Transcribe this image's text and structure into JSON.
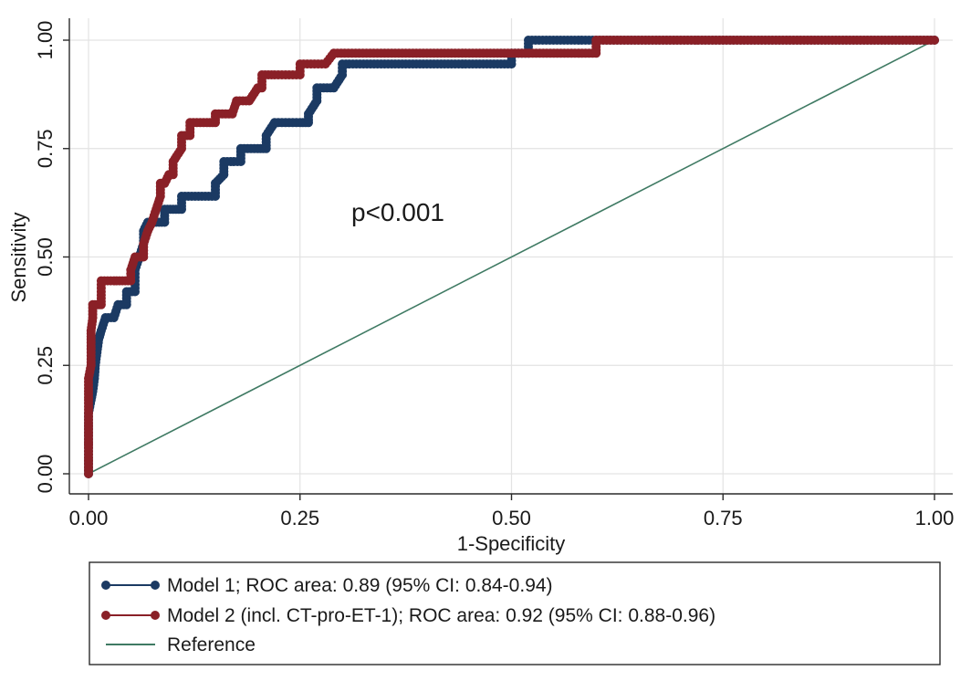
{
  "chart_data": {
    "type": "line",
    "title": "",
    "xlabel": "1-Specificity",
    "ylabel": "Sensitivity",
    "xlim": [
      0,
      1
    ],
    "ylim": [
      0,
      1
    ],
    "xticks": [
      0,
      0.25,
      0.5,
      0.75,
      1
    ],
    "xtick_labels": [
      "0.00",
      "0.25",
      "0.50",
      "0.75",
      "1.00"
    ],
    "yticks": [
      0,
      0.25,
      0.5,
      0.75,
      1
    ],
    "ytick_labels": [
      "0.00",
      "0.25",
      "0.50",
      "0.75",
      "1.00"
    ],
    "grid": true,
    "annotation": "p<0.001",
    "legend_position": "bottom",
    "series": [
      {
        "name": "Model 1; ROC area: 0.89 (95% CI: 0.84-0.94)",
        "color": "#1b3a63",
        "marker": "circle",
        "points": [
          [
            0,
            0
          ],
          [
            0,
            0.03
          ],
          [
            0,
            0.06
          ],
          [
            0,
            0.08
          ],
          [
            0,
            0.11
          ],
          [
            0,
            0.14
          ],
          [
            0.003,
            0.17
          ],
          [
            0.005,
            0.19
          ],
          [
            0.007,
            0.22
          ],
          [
            0.008,
            0.25
          ],
          [
            0.01,
            0.28
          ],
          [
            0.012,
            0.31
          ],
          [
            0.015,
            0.33
          ],
          [
            0.02,
            0.36
          ],
          [
            0.03,
            0.36
          ],
          [
            0.035,
            0.39
          ],
          [
            0.045,
            0.39
          ],
          [
            0.045,
            0.42
          ],
          [
            0.055,
            0.42
          ],
          [
            0.055,
            0.47
          ],
          [
            0.06,
            0.5
          ],
          [
            0.065,
            0.53
          ],
          [
            0.065,
            0.56
          ],
          [
            0.07,
            0.58
          ],
          [
            0.08,
            0.58
          ],
          [
            0.09,
            0.58
          ],
          [
            0.09,
            0.61
          ],
          [
            0.1,
            0.61
          ],
          [
            0.11,
            0.61
          ],
          [
            0.11,
            0.64
          ],
          [
            0.13,
            0.64
          ],
          [
            0.15,
            0.64
          ],
          [
            0.15,
            0.67
          ],
          [
            0.16,
            0.69
          ],
          [
            0.16,
            0.72
          ],
          [
            0.18,
            0.72
          ],
          [
            0.18,
            0.75
          ],
          [
            0.2,
            0.75
          ],
          [
            0.21,
            0.75
          ],
          [
            0.21,
            0.78
          ],
          [
            0.22,
            0.81
          ],
          [
            0.25,
            0.81
          ],
          [
            0.26,
            0.81
          ],
          [
            0.26,
            0.83
          ],
          [
            0.27,
            0.86
          ],
          [
            0.27,
            0.89
          ],
          [
            0.29,
            0.89
          ],
          [
            0.3,
            0.92
          ],
          [
            0.3,
            0.945
          ],
          [
            0.35,
            0.945
          ],
          [
            0.4,
            0.945
          ],
          [
            0.45,
            0.945
          ],
          [
            0.5,
            0.945
          ],
          [
            0.5,
            0.97
          ],
          [
            0.52,
            0.97
          ],
          [
            0.52,
            1.0
          ],
          [
            0.6,
            1.0
          ],
          [
            0.7,
            1.0
          ],
          [
            0.8,
            1.0
          ],
          [
            0.9,
            1.0
          ],
          [
            1.0,
            1.0
          ]
        ]
      },
      {
        "name": "Model 2 (incl. CT-pro-ET-1); ROC area: 0.92 (95% CI: 0.88-0.96)",
        "color": "#8a2027",
        "marker": "circle",
        "points": [
          [
            0,
            0
          ],
          [
            0,
            0.03
          ],
          [
            0,
            0.06
          ],
          [
            0,
            0.08
          ],
          [
            0,
            0.11
          ],
          [
            0,
            0.14
          ],
          [
            0,
            0.17
          ],
          [
            0,
            0.19
          ],
          [
            0,
            0.22
          ],
          [
            0.003,
            0.25
          ],
          [
            0.003,
            0.28
          ],
          [
            0.003,
            0.31
          ],
          [
            0.003,
            0.33
          ],
          [
            0.005,
            0.36
          ],
          [
            0.005,
            0.39
          ],
          [
            0.01,
            0.39
          ],
          [
            0.015,
            0.39
          ],
          [
            0.015,
            0.42
          ],
          [
            0.015,
            0.445
          ],
          [
            0.03,
            0.445
          ],
          [
            0.04,
            0.445
          ],
          [
            0.05,
            0.445
          ],
          [
            0.05,
            0.47
          ],
          [
            0.055,
            0.5
          ],
          [
            0.065,
            0.5
          ],
          [
            0.065,
            0.53
          ],
          [
            0.07,
            0.56
          ],
          [
            0.075,
            0.58
          ],
          [
            0.08,
            0.61
          ],
          [
            0.085,
            0.64
          ],
          [
            0.085,
            0.67
          ],
          [
            0.09,
            0.67
          ],
          [
            0.095,
            0.69
          ],
          [
            0.1,
            0.69
          ],
          [
            0.1,
            0.72
          ],
          [
            0.11,
            0.75
          ],
          [
            0.11,
            0.78
          ],
          [
            0.12,
            0.78
          ],
          [
            0.12,
            0.81
          ],
          [
            0.14,
            0.81
          ],
          [
            0.15,
            0.81
          ],
          [
            0.15,
            0.83
          ],
          [
            0.17,
            0.83
          ],
          [
            0.175,
            0.86
          ],
          [
            0.19,
            0.86
          ],
          [
            0.2,
            0.89
          ],
          [
            0.205,
            0.89
          ],
          [
            0.205,
            0.92
          ],
          [
            0.22,
            0.92
          ],
          [
            0.25,
            0.92
          ],
          [
            0.25,
            0.945
          ],
          [
            0.28,
            0.945
          ],
          [
            0.29,
            0.97
          ],
          [
            0.35,
            0.97
          ],
          [
            0.45,
            0.97
          ],
          [
            0.55,
            0.97
          ],
          [
            0.6,
            0.97
          ],
          [
            0.6,
            1.0
          ],
          [
            0.65,
            1.0
          ],
          [
            0.75,
            1.0
          ],
          [
            0.85,
            1.0
          ],
          [
            0.95,
            1.0
          ],
          [
            1.0,
            1.0
          ]
        ]
      },
      {
        "name": "Reference",
        "color": "#3f7a63",
        "marker": "none",
        "points": [
          [
            0,
            0
          ],
          [
            1,
            1
          ]
        ]
      }
    ]
  }
}
